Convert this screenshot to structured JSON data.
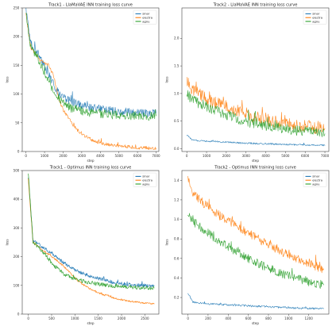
{
  "figure": {
    "background": "#ffffff"
  },
  "chart_data": [
    {
      "type": "line",
      "title": "Track1 - LlaMaVAE  INN training loss curve",
      "xlabel": "step",
      "ylabel": "loss",
      "xlim": [
        -200,
        7150
      ],
      "ylim": [
        0,
        250
      ],
      "xticks": [
        0,
        1000,
        2000,
        3000,
        4000,
        5000,
        6000,
        7000
      ],
      "yticks": [
        0,
        50,
        100,
        150,
        200,
        250
      ],
      "grid": false,
      "legend": "top-right",
      "x_step": 250,
      "noise": [
        7,
        3,
        8
      ],
      "series": [
        {
          "name": "sinar",
          "color": "#1f77b4",
          "values": [
            245,
            188,
            176,
            165,
            150,
            132,
            116,
            103,
            95,
            90,
            86,
            83,
            80,
            78,
            76,
            75,
            74,
            73,
            72,
            71,
            70,
            69,
            69,
            68,
            68,
            67,
            67,
            67,
            67
          ]
        },
        {
          "name": "electra",
          "color": "#ff7f0e",
          "values": [
            240,
            182,
            170,
            160,
            155,
            150,
            130,
            93,
            72,
            60,
            47,
            38,
            30,
            25,
            21,
            18,
            15,
            13,
            12,
            11,
            10,
            9,
            8,
            7.5,
            7,
            6.5,
            6.2,
            6,
            5.8
          ]
        },
        {
          "name": "agnu",
          "color": "#2ca02c",
          "values": [
            243,
            184,
            170,
            155,
            138,
            120,
            104,
            94,
            86,
            80,
            76,
            73,
            71,
            69,
            68,
            67,
            66,
            65,
            64,
            64,
            63,
            63,
            63,
            63,
            62,
            62,
            62,
            62,
            62
          ]
        }
      ]
    },
    {
      "type": "line",
      "title": "Track2 - LlaMaVAE  INN training loss curve",
      "xlabel": "step",
      "ylabel": "loss",
      "xlim": [
        -250,
        7200
      ],
      "ylim": [
        -0.05,
        2.55
      ],
      "xticks": [
        0,
        1000,
        2000,
        3000,
        4000,
        5000,
        6000,
        7000
      ],
      "yticks": [
        0.0,
        0.5,
        1.0,
        1.5,
        2.0
      ],
      "grid": false,
      "legend": "top-right",
      "x_step": 250,
      "noise": [
        0.015,
        0.12,
        0.1
      ],
      "series": [
        {
          "name": "sinar",
          "color": "#1f77b4",
          "values": [
            0.25,
            0.16,
            0.15,
            0.145,
            0.14,
            0.135,
            0.13,
            0.125,
            0.12,
            0.115,
            0.11,
            0.105,
            0.1,
            0.098,
            0.095,
            0.092,
            0.09,
            0.087,
            0.085,
            0.082,
            0.08,
            0.078,
            0.075,
            0.073,
            0.07,
            0.068,
            0.066,
            0.064,
            0.062
          ]
        },
        {
          "name": "electra",
          "color": "#ff7f0e",
          "values": [
            1.25,
            1.05,
            1.0,
            0.95,
            0.9,
            0.86,
            0.82,
            0.78,
            0.75,
            0.72,
            0.69,
            0.66,
            0.63,
            0.6,
            0.58,
            0.56,
            0.54,
            0.52,
            0.5,
            0.48,
            0.46,
            0.44,
            0.43,
            0.42,
            0.41,
            0.4,
            0.39,
            0.38,
            0.37
          ]
        },
        {
          "name": "agnu",
          "color": "#2ca02c",
          "values": [
            1.0,
            0.88,
            0.84,
            0.8,
            0.76,
            0.72,
            0.68,
            0.65,
            0.62,
            0.59,
            0.56,
            0.53,
            0.5,
            0.48,
            0.46,
            0.44,
            0.42,
            0.4,
            0.38,
            0.37,
            0.35,
            0.34,
            0.33,
            0.32,
            0.31,
            0.3,
            0.29,
            0.28,
            0.27
          ]
        }
      ]
    },
    {
      "type": "line",
      "title": "Track1 - Optimus  INN training loss curve",
      "xlabel": "step",
      "ylabel": "loss",
      "xlim": [
        -130,
        2800
      ],
      "ylim": [
        0,
        500
      ],
      "xticks": [
        0,
        500,
        1000,
        1500,
        2000,
        2500
      ],
      "yticks": [
        0,
        100,
        200,
        300,
        400,
        500
      ],
      "grid": false,
      "legend": "top-right",
      "x_step": 100,
      "noise": [
        6,
        3,
        7
      ],
      "series": [
        {
          "name": "sinar",
          "color": "#1f77b4",
          "values": [
            480,
            255,
            245,
            233,
            222,
            210,
            198,
            186,
            175,
            164,
            155,
            147,
            140,
            134,
            129,
            124,
            120,
            116,
            112,
            109,
            106,
            104,
            102,
            101,
            100,
            99,
            98,
            98
          ]
        },
        {
          "name": "electra",
          "color": "#ff7f0e",
          "values": [
            470,
            250,
            237,
            224,
            212,
            200,
            188,
            175,
            160,
            143,
            126,
            112,
            100,
            90,
            81,
            74,
            68,
            63,
            58,
            54,
            50,
            47,
            44,
            42,
            40,
            38,
            37,
            36
          ]
        },
        {
          "name": "agnu",
          "color": "#2ca02c",
          "values": [
            490,
            250,
            237,
            220,
            200,
            180,
            162,
            148,
            137,
            129,
            123,
            118,
            114,
            110,
            107,
            104,
            102,
            100,
            98,
            97,
            96,
            95,
            94,
            93,
            92,
            92,
            91,
            91
          ]
        }
      ]
    },
    {
      "type": "line",
      "title": "Track2 - Optimus  INN training loss curve",
      "xlabel": "step",
      "ylabel": "loss",
      "xlim": [
        -60,
        1400
      ],
      "ylim": [
        0.03,
        1.5
      ],
      "xticks": [
        0,
        200,
        400,
        600,
        800,
        1000,
        1200
      ],
      "yticks": [
        0.2,
        0.4,
        0.6,
        0.8,
        1.0,
        1.2,
        1.4
      ],
      "grid": false,
      "legend": "top-right",
      "x_step": 50,
      "noise": [
        0.01,
        0.045,
        0.045
      ],
      "series": [
        {
          "name": "sinar",
          "color": "#1f77b4",
          "values": [
            0.25,
            0.15,
            0.145,
            0.14,
            0.135,
            0.132,
            0.13,
            0.128,
            0.125,
            0.122,
            0.12,
            0.118,
            0.115,
            0.112,
            0.11,
            0.108,
            0.105,
            0.103,
            0.1,
            0.098,
            0.096,
            0.094,
            0.092,
            0.09,
            0.089,
            0.088,
            0.087,
            0.086
          ]
        },
        {
          "name": "electra",
          "color": "#ff7f0e",
          "values": [
            1.42,
            1.28,
            1.22,
            1.17,
            1.13,
            1.09,
            1.05,
            1.01,
            0.98,
            0.95,
            0.92,
            0.89,
            0.86,
            0.83,
            0.8,
            0.77,
            0.74,
            0.71,
            0.68,
            0.66,
            0.63,
            0.61,
            0.59,
            0.57,
            0.55,
            0.53,
            0.51,
            0.49
          ]
        },
        {
          "name": "agnu",
          "color": "#2ca02c",
          "values": [
            1.05,
            0.98,
            0.94,
            0.9,
            0.86,
            0.82,
            0.78,
            0.75,
            0.72,
            0.69,
            0.66,
            0.63,
            0.6,
            0.58,
            0.55,
            0.52,
            0.5,
            0.48,
            0.46,
            0.44,
            0.42,
            0.41,
            0.39,
            0.38,
            0.36,
            0.35,
            0.34,
            0.33
          ]
        }
      ]
    }
  ]
}
